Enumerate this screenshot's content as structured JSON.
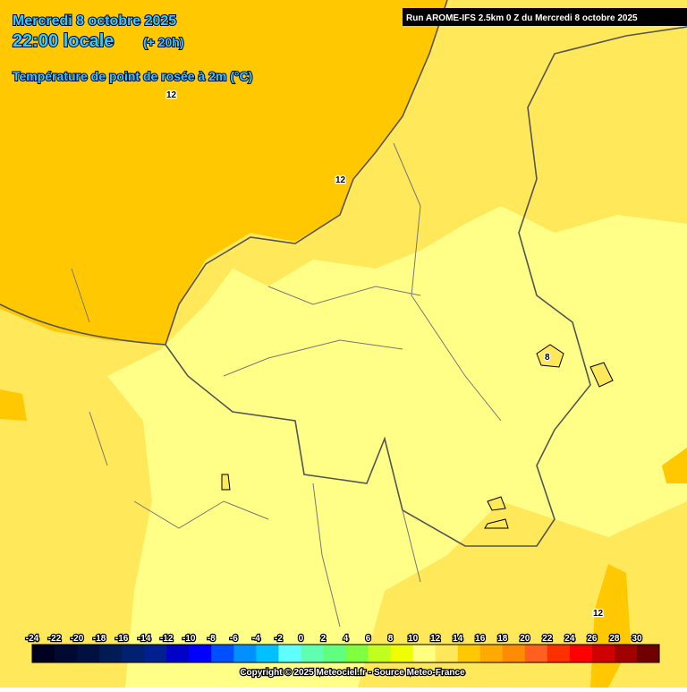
{
  "header": {
    "date": "Mercredi 8 octobre 2025",
    "time": "22:00 locale",
    "lead": "(+ 20h)",
    "variable": "Température de point de rosée à 2m (°C)",
    "run": "Run AROME-IFS 2.5km 0 Z du Mercredi 8 octobre 2025"
  },
  "map": {
    "contour_labels": [
      "12",
      "12",
      "8",
      "12"
    ]
  },
  "legend": {
    "ticks": [
      -24,
      -22,
      -20,
      -18,
      -16,
      -14,
      -12,
      -10,
      -8,
      -6,
      -4,
      -2,
      0,
      2,
      4,
      6,
      8,
      10,
      12,
      14,
      16,
      18,
      20,
      22,
      24,
      26,
      28,
      30
    ],
    "colors": [
      "#000020",
      "#000a30",
      "#001040",
      "#001a55",
      "#002070",
      "#00208f",
      "#0000c8",
      "#0000ff",
      "#0050ff",
      "#0090ff",
      "#00c0ff",
      "#60ffff",
      "#60ffb0",
      "#60ff80",
      "#80ff40",
      "#c0ff20",
      "#f0ff00",
      "#ffff80",
      "#ffe85a",
      "#ffc800",
      "#ffaa00",
      "#ff8c00",
      "#ff6020",
      "#ff3000",
      "#ff0000",
      "#d00000",
      "#a00000",
      "#700000"
    ]
  },
  "footer": {
    "copyright": "Copyright © 2025 Meteociel.fr - Source Meteo-France"
  }
}
